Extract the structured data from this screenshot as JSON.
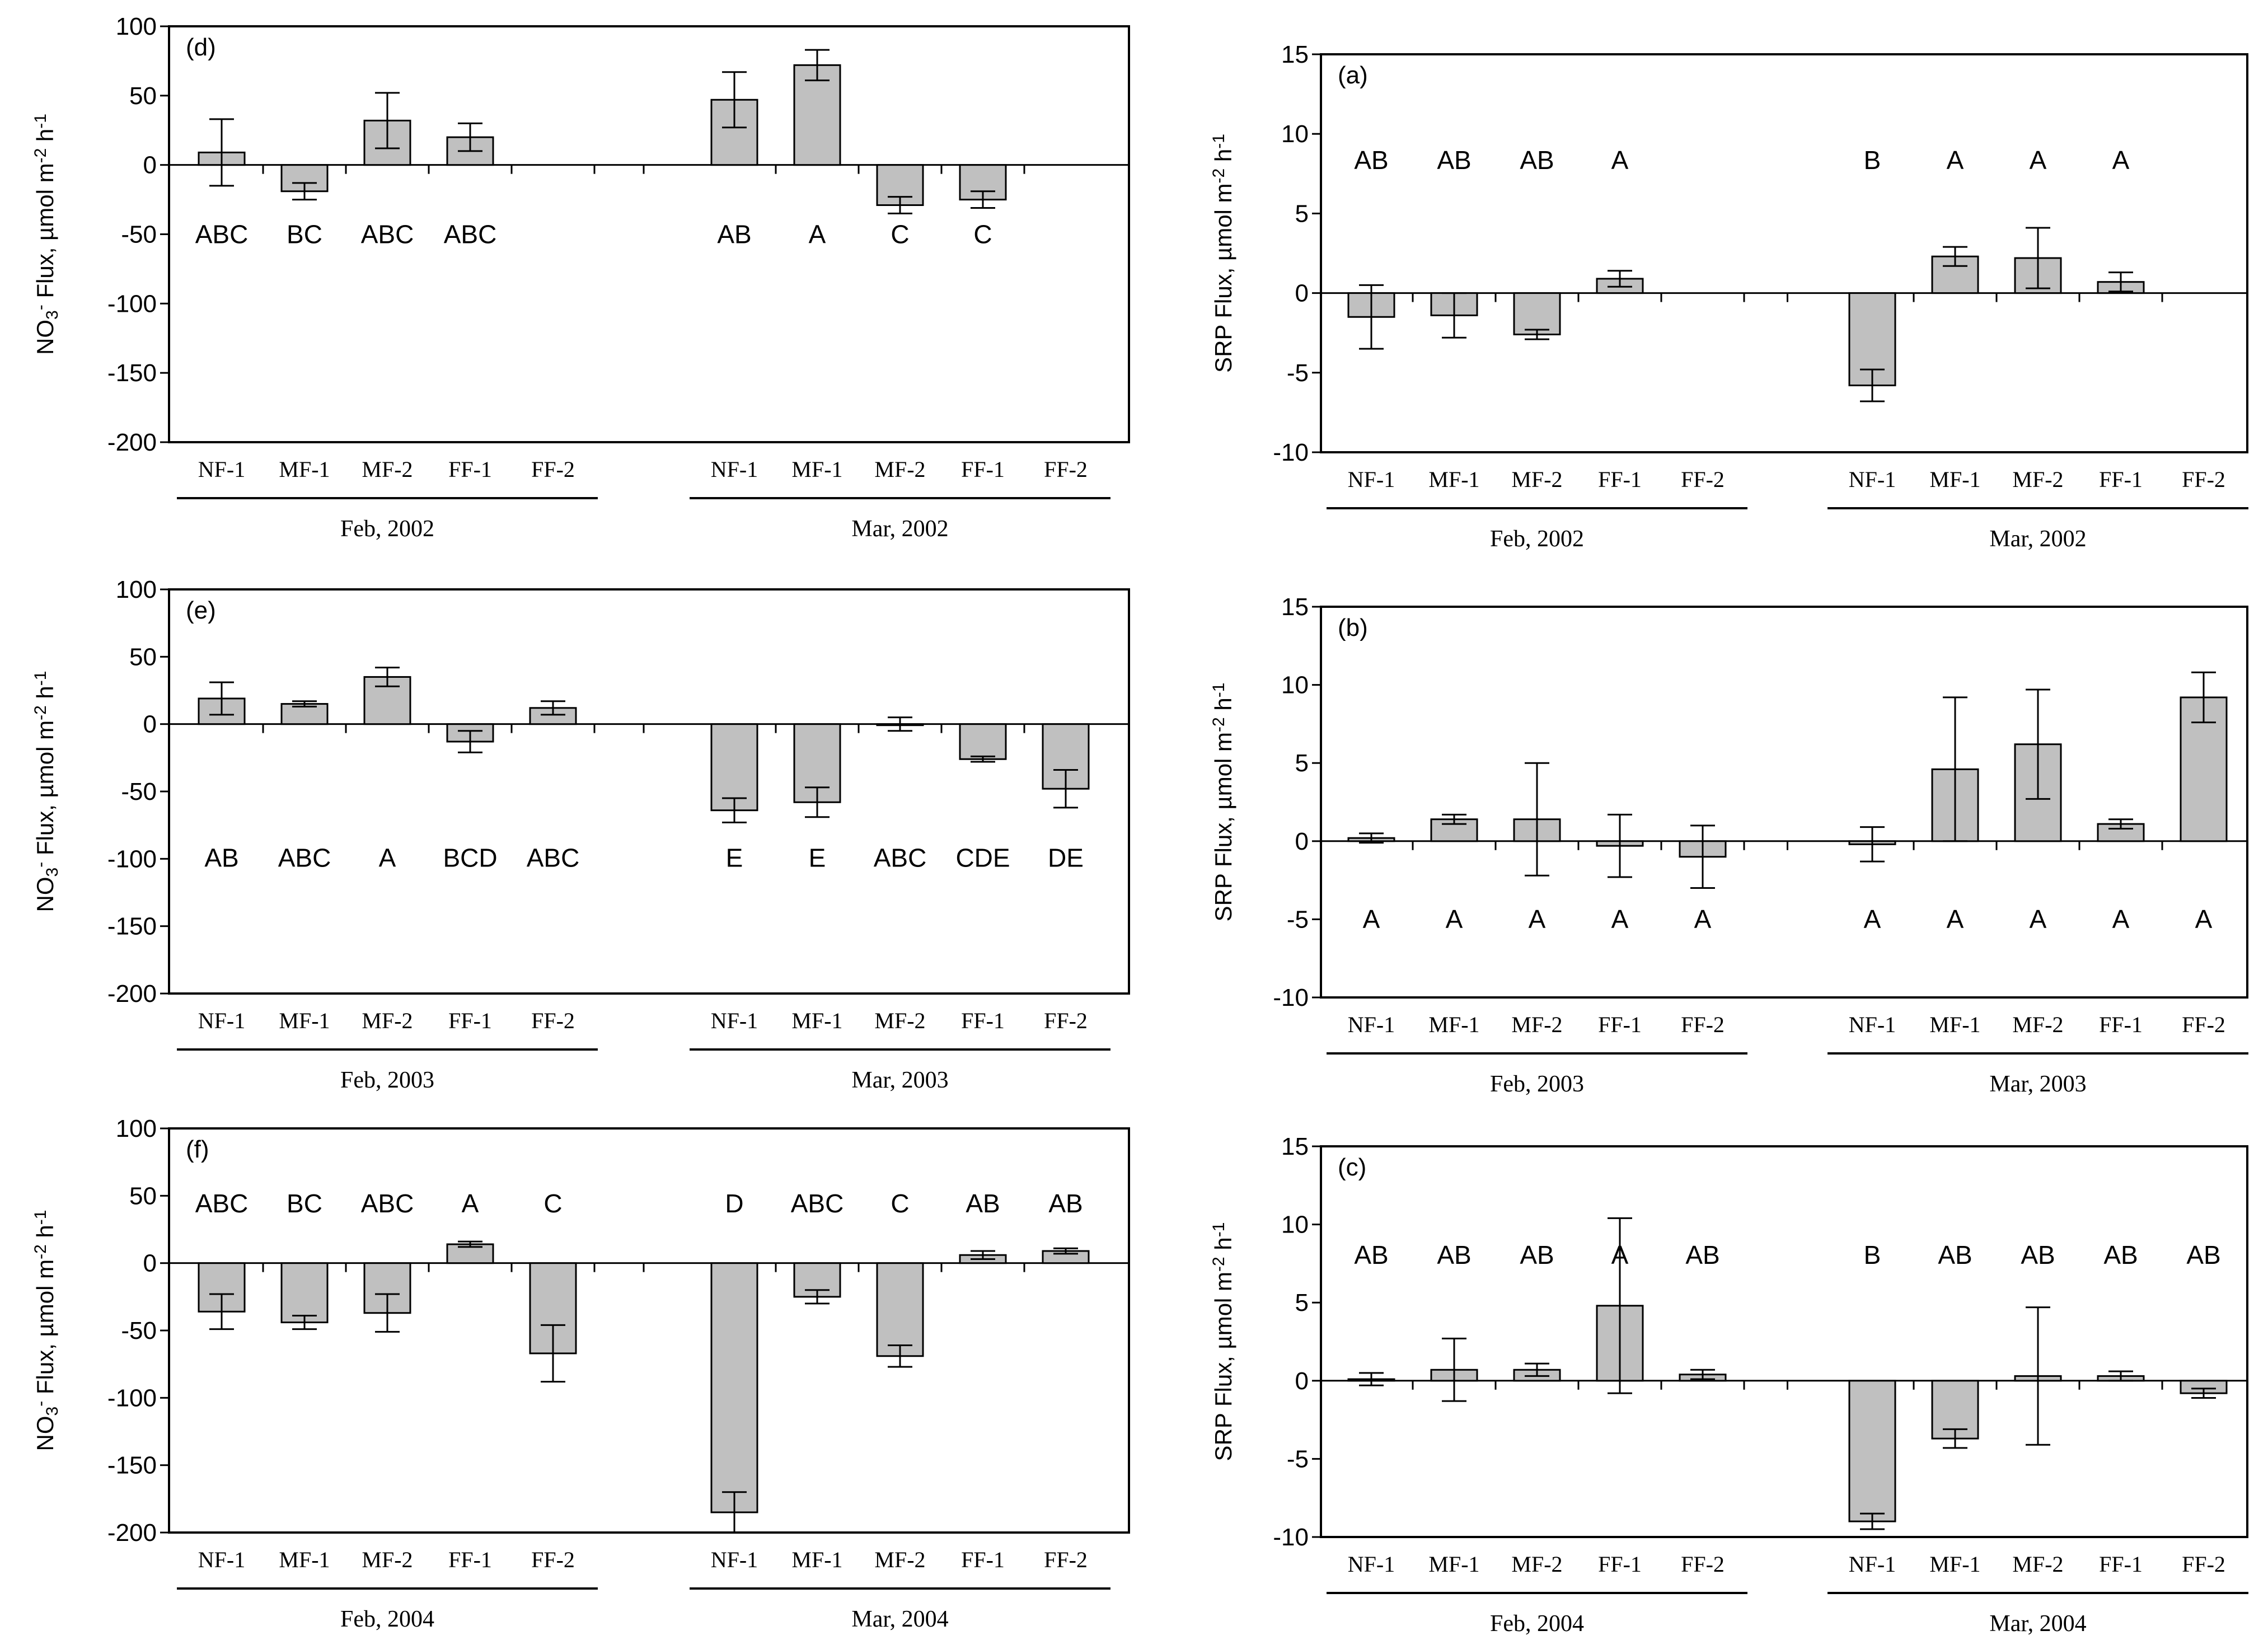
{
  "chart_data": [
    {
      "panel": "(d)",
      "type": "bar",
      "ylabel_main": "NO",
      "ylabel_sub": "3",
      "ylabel_sup1": "-",
      "ylabel_mid": " Flux, µmol m",
      "ylabel_sup2": "-2",
      "ylabel_tail": " h",
      "ylabel_sup3": "-1",
      "ylim": [
        -200,
        100
      ],
      "yticks": [
        "100",
        "50",
        "0",
        "-50",
        "-100",
        "-150",
        "-200"
      ],
      "ytick_values": [
        100,
        50,
        0,
        -50,
        -100,
        -150,
        -200
      ],
      "categories": [
        "NF-1",
        "MF-1",
        "MF-2",
        "FF-1",
        "FF-2",
        "NF-1",
        "MF-1",
        "MF-2",
        "FF-1",
        "FF-2"
      ],
      "values": [
        9,
        -19,
        32,
        20,
        null,
        47,
        72,
        -29,
        -25,
        null
      ],
      "err": [
        24,
        6,
        20,
        10,
        null,
        20,
        11,
        6,
        6,
        null
      ],
      "letters": [
        "ABC",
        "BC",
        "ABC",
        "ABC",
        "",
        "AB",
        "A",
        "C",
        "C",
        ""
      ],
      "letters_pos": "below",
      "groups": [
        "Feb, 2002",
        "Mar, 2002"
      ]
    },
    {
      "panel": "(a)",
      "type": "bar",
      "ylabel_text": "SRP Flux, µmol m",
      "ylabel_sup2": "-2",
      "ylabel_tail": " h",
      "ylabel_sup3": "-1",
      "ylim": [
        -10,
        15
      ],
      "yticks": [
        "15",
        "10",
        "5",
        "0",
        "-5",
        "-10"
      ],
      "ytick_values": [
        15,
        10,
        5,
        0,
        -5,
        -10
      ],
      "categories": [
        "NF-1",
        "MF-1",
        "MF-2",
        "FF-1",
        "FF-2",
        "NF-1",
        "MF-1",
        "MF-2",
        "FF-1",
        "FF-2"
      ],
      "values": [
        -1.5,
        -1.4,
        -2.6,
        0.9,
        null,
        -5.8,
        2.3,
        2.2,
        0.7,
        null
      ],
      "err": [
        2.0,
        1.4,
        0.3,
        0.5,
        null,
        1.0,
        0.6,
        1.9,
        0.6,
        null
      ],
      "letters": [
        "AB",
        "AB",
        "AB",
        "A",
        "",
        "B",
        "A",
        "A",
        "A",
        ""
      ],
      "letters_pos": "above",
      "groups": [
        "Feb, 2002",
        "Mar, 2002"
      ]
    },
    {
      "panel": "(e)",
      "type": "bar",
      "ylabel_main": "NO",
      "ylabel_sub": "3",
      "ylabel_sup1": "-",
      "ylabel_mid": " Flux, µmol m",
      "ylabel_sup2": "-2",
      "ylabel_tail": " h",
      "ylabel_sup3": "-1",
      "ylim": [
        -200,
        100
      ],
      "yticks": [
        "100",
        "50",
        "0",
        "-50",
        "-100",
        "-150",
        "-200"
      ],
      "ytick_values": [
        100,
        50,
        0,
        -50,
        -100,
        -150,
        -200
      ],
      "categories": [
        "NF-1",
        "MF-1",
        "MF-2",
        "FF-1",
        "FF-2",
        "NF-1",
        "MF-1",
        "MF-2",
        "FF-1",
        "FF-2"
      ],
      "values": [
        19,
        15,
        35,
        -13,
        12,
        -64,
        -58,
        0,
        -26,
        -48
      ],
      "err": [
        12,
        2,
        7,
        8,
        5,
        9,
        11,
        5,
        2,
        14
      ],
      "letters": [
        "AB",
        "ABC",
        "A",
        "BCD",
        "ABC",
        "E",
        "E",
        "ABC",
        "CDE",
        "DE"
      ],
      "letters_pos": "below",
      "groups": [
        "Feb, 2003",
        "Mar, 2003"
      ]
    },
    {
      "panel": "(b)",
      "type": "bar",
      "ylabel_text": "SRP Flux, µmol m",
      "ylabel_sup2": "-2",
      "ylabel_tail": " h",
      "ylabel_sup3": "-1",
      "ylim": [
        -10,
        15
      ],
      "yticks": [
        "15",
        "10",
        "5",
        "0",
        "-5",
        "-10"
      ],
      "ytick_values": [
        15,
        10,
        5,
        0,
        -5,
        -10
      ],
      "categories": [
        "NF-1",
        "MF-1",
        "MF-2",
        "FF-1",
        "FF-2",
        "NF-1",
        "MF-1",
        "MF-2",
        "FF-1",
        "FF-2"
      ],
      "values": [
        0.2,
        1.4,
        1.4,
        -0.3,
        -1.0,
        -0.2,
        4.6,
        6.2,
        1.1,
        9.2
      ],
      "err": [
        0.3,
        0.3,
        3.6,
        2.0,
        2.0,
        1.1,
        4.6,
        3.5,
        0.3,
        1.6
      ],
      "letters": [
        "A",
        "A",
        "A",
        "A",
        "A",
        "A",
        "A",
        "A",
        "A",
        "A"
      ],
      "letters_pos": "below",
      "groups": [
        "Feb, 2003",
        "Mar, 2003"
      ]
    },
    {
      "panel": "(f)",
      "type": "bar",
      "ylabel_main": "NO",
      "ylabel_sub": "3",
      "ylabel_sup1": "-",
      "ylabel_mid": " Flux, µmol m",
      "ylabel_sup2": "-2",
      "ylabel_tail": " h",
      "ylabel_sup3": "-1",
      "ylim": [
        -200,
        100
      ],
      "yticks": [
        "100",
        "50",
        "0",
        "-50",
        "-100",
        "-150",
        "-200"
      ],
      "ytick_values": [
        100,
        50,
        0,
        -50,
        -100,
        -150,
        -200
      ],
      "categories": [
        "NF-1",
        "MF-1",
        "MF-2",
        "FF-1",
        "FF-2",
        "NF-1",
        "MF-1",
        "MF-2",
        "FF-1",
        "FF-2"
      ],
      "values": [
        -36,
        -44,
        -37,
        14,
        -67,
        -185,
        -25,
        -69,
        6,
        9
      ],
      "err": [
        13,
        5,
        14,
        2,
        21,
        15,
        5,
        8,
        3,
        2
      ],
      "letters": [
        "ABC",
        "BC",
        "ABC",
        "A",
        "C",
        "D",
        "ABC",
        "C",
        "AB",
        "AB"
      ],
      "letters_pos": "above",
      "groups": [
        "Feb, 2004",
        "Mar, 2004"
      ]
    },
    {
      "panel": "(c)",
      "type": "bar",
      "ylabel_text": "SRP Flux, µmol m",
      "ylabel_sup2": "-2",
      "ylabel_tail": " h",
      "ylabel_sup3": "-1",
      "ylim": [
        -10,
        15
      ],
      "yticks": [
        "15",
        "10",
        "5",
        "0",
        "-5",
        "-10"
      ],
      "ytick_values": [
        15,
        10,
        5,
        0,
        -5,
        -10
      ],
      "categories": [
        "NF-1",
        "MF-1",
        "MF-2",
        "FF-1",
        "FF-2",
        "NF-1",
        "MF-1",
        "MF-2",
        "FF-1",
        "FF-2"
      ],
      "values": [
        0.1,
        0.7,
        0.7,
        4.8,
        0.4,
        -9.0,
        -3.7,
        0.3,
        0.3,
        -0.8
      ],
      "err": [
        0.4,
        2.0,
        0.4,
        5.6,
        0.3,
        0.5,
        0.6,
        4.4,
        0.3,
        0.3
      ],
      "letters": [
        "AB",
        "AB",
        "AB",
        "A",
        "AB",
        "B",
        "AB",
        "AB",
        "AB",
        "AB"
      ],
      "letters_pos": "above",
      "groups": [
        "Feb, 2004",
        "Mar, 2004"
      ]
    }
  ]
}
